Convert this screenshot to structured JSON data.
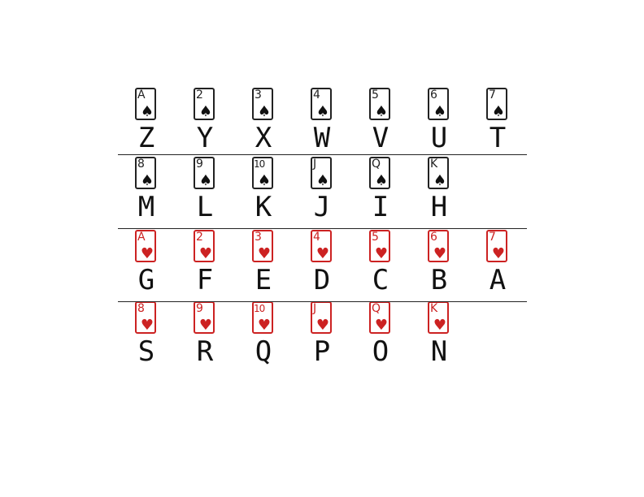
{
  "rows": [
    {
      "suit": "♠",
      "color": "#222222",
      "red": false,
      "cells": [
        {
          "rank": "A",
          "letter": "Z"
        },
        {
          "rank": "2",
          "letter": "Y"
        },
        {
          "rank": "3",
          "letter": "X"
        },
        {
          "rank": "4",
          "letter": "W"
        },
        {
          "rank": "5",
          "letter": "V"
        },
        {
          "rank": "6",
          "letter": "U"
        },
        {
          "rank": "7",
          "letter": "T"
        }
      ]
    },
    {
      "suit": "♠",
      "color": "#222222",
      "red": false,
      "cells": [
        {
          "rank": "8",
          "letter": "M"
        },
        {
          "rank": "9",
          "letter": "L"
        },
        {
          "rank": "10",
          "letter": "K"
        },
        {
          "rank": "J",
          "letter": "J"
        },
        {
          "rank": "Q",
          "letter": "I"
        },
        {
          "rank": "K",
          "letter": "H"
        }
      ]
    },
    {
      "suit": "♥",
      "color": "#cc2222",
      "red": true,
      "cells": [
        {
          "rank": "A",
          "letter": "G"
        },
        {
          "rank": "2",
          "letter": "F"
        },
        {
          "rank": "3",
          "letter": "E"
        },
        {
          "rank": "4",
          "letter": "D"
        },
        {
          "rank": "5",
          "letter": "C"
        },
        {
          "rank": "6",
          "letter": "B"
        },
        {
          "rank": "7",
          "letter": "A"
        }
      ]
    },
    {
      "suit": "♥",
      "color": "#cc2222",
      "red": true,
      "cells": [
        {
          "rank": "8",
          "letter": "S"
        },
        {
          "rank": "9",
          "letter": "R"
        },
        {
          "rank": "10",
          "letter": "Q"
        },
        {
          "rank": "J",
          "letter": "P"
        },
        {
          "rank": "Q",
          "letter": "O"
        },
        {
          "rank": "K",
          "letter": "N"
        }
      ]
    }
  ]
}
